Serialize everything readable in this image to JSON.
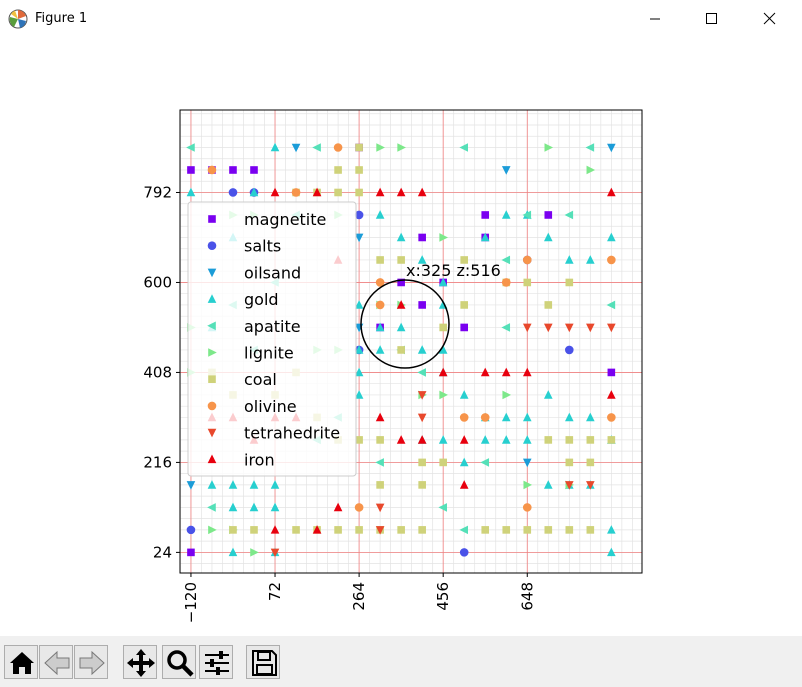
{
  "window": {
    "title": "Figure 1",
    "buttons": [
      "minimize",
      "maximize",
      "close"
    ]
  },
  "toolbar": {
    "buttons": [
      "home-icon",
      "back-icon",
      "forward-icon",
      "pan-icon",
      "zoom-icon",
      "configure-subplots-icon",
      "save-icon"
    ]
  },
  "chart_data": {
    "type": "scatter",
    "title": "",
    "xlabel": "",
    "ylabel": "",
    "xlim": [
      -145,
      910
    ],
    "ylim": [
      -20,
      968
    ],
    "xticks": [
      -120,
      72,
      264,
      456,
      648
    ],
    "yticks": [
      24,
      216,
      408,
      600,
      792
    ],
    "grid": true,
    "legend_position": "upper-left",
    "annotation": {
      "text": "x:325 z:516",
      "x": 325,
      "y": 516
    },
    "series": [
      {
        "name": "magnetite",
        "marker": "square",
        "color": "#7a00f0",
        "points": [
          [
            -120,
            840
          ],
          [
            -72,
            840
          ],
          [
            -24,
            840
          ],
          [
            24,
            840
          ],
          [
            264,
            888
          ],
          [
            408,
            696
          ],
          [
            408,
            552
          ],
          [
            456,
            600
          ],
          [
            360,
            600
          ],
          [
            312,
            504
          ],
          [
            552,
            744
          ],
          [
            696,
            744
          ],
          [
            504,
            504
          ],
          [
            552,
            696
          ],
          [
            840,
            408
          ],
          [
            -120,
            24
          ]
        ]
      },
      {
        "name": "salts",
        "marker": "circle",
        "color": "#4a52e8",
        "points": [
          [
            -24,
            792
          ],
          [
            24,
            792
          ],
          [
            264,
            744
          ],
          [
            264,
            456
          ],
          [
            648,
            648
          ],
          [
            744,
            456
          ],
          [
            504,
            24
          ],
          [
            -120,
            72
          ]
        ]
      },
      {
        "name": "oilsand",
        "marker": "triangle-down",
        "color": "#1b9cd8",
        "points": [
          [
            120,
            888
          ],
          [
            840,
            888
          ],
          [
            600,
            840
          ],
          [
            264,
            696
          ],
          [
            264,
            504
          ],
          [
            648,
            216
          ],
          [
            -120,
            168
          ]
        ]
      },
      {
        "name": "gold",
        "marker": "triangle-up",
        "color": "#27cfcf",
        "points": [
          [
            -120,
            792
          ],
          [
            72,
            888
          ],
          [
            24,
            792
          ],
          [
            -24,
            696
          ],
          [
            -72,
            504
          ],
          [
            360,
            696
          ],
          [
            408,
            648
          ],
          [
            456,
            600
          ],
          [
            456,
            552
          ],
          [
            312,
            504
          ],
          [
            264,
            552
          ],
          [
            360,
            504
          ],
          [
            408,
            456
          ],
          [
            456,
            456
          ],
          [
            552,
            696
          ],
          [
            600,
            744
          ],
          [
            648,
            744
          ],
          [
            696,
            696
          ],
          [
            744,
            648
          ],
          [
            792,
            648
          ],
          [
            840,
            696
          ],
          [
            312,
            744
          ],
          [
            456,
            408
          ],
          [
            504,
            360
          ],
          [
            552,
            312
          ],
          [
            600,
            312
          ],
          [
            648,
            312
          ],
          [
            696,
            360
          ],
          [
            744,
            312
          ],
          [
            792,
            312
          ],
          [
            840,
            264
          ],
          [
            -72,
            168
          ],
          [
            -24,
            168
          ],
          [
            24,
            168
          ],
          [
            72,
            168
          ],
          [
            -24,
            120
          ],
          [
            24,
            120
          ],
          [
            72,
            120
          ],
          [
            264,
            360
          ],
          [
            264,
            408
          ],
          [
            264,
            456
          ],
          [
            312,
            456
          ],
          [
            408,
            264
          ],
          [
            456,
            264
          ],
          [
            552,
            264
          ],
          [
            600,
            264
          ],
          [
            648,
            264
          ],
          [
            504,
            216
          ],
          [
            840,
            24
          ],
          [
            72,
            24
          ],
          [
            -24,
            24
          ],
          [
            696,
            168
          ],
          [
            744,
            168
          ],
          [
            792,
            168
          ],
          [
            840,
            72
          ]
        ]
      },
      {
        "name": "apatite",
        "marker": "triangle-left",
        "color": "#55e0b8",
        "points": [
          [
            -120,
            888
          ],
          [
            168,
            888
          ],
          [
            120,
            744
          ],
          [
            360,
            456
          ],
          [
            408,
            408
          ],
          [
            600,
            648
          ],
          [
            648,
            744
          ],
          [
            600,
            504
          ],
          [
            744,
            744
          ],
          [
            792,
            888
          ],
          [
            456,
            120
          ],
          [
            504,
            72
          ],
          [
            552,
            216
          ],
          [
            312,
            216
          ],
          [
            -72,
            120
          ],
          [
            168,
            264
          ],
          [
            216,
            312
          ],
          [
            24,
            456
          ],
          [
            -24,
            552
          ],
          [
            72,
            600
          ],
          [
            504,
            888
          ],
          [
            840,
            552
          ]
        ]
      },
      {
        "name": "lignite",
        "marker": "triangle-right",
        "color": "#7de88a",
        "points": [
          [
            24,
            744
          ],
          [
            -24,
            744
          ],
          [
            312,
            888
          ],
          [
            360,
            888
          ],
          [
            312,
            552
          ],
          [
            360,
            552
          ],
          [
            216,
            744
          ],
          [
            408,
            360
          ],
          [
            456,
            360
          ],
          [
            600,
            360
          ],
          [
            648,
            168
          ],
          [
            744,
            168
          ],
          [
            792,
            840
          ],
          [
            696,
            888
          ],
          [
            -72,
            72
          ],
          [
            -24,
            72
          ],
          [
            456,
            696
          ],
          [
            -120,
            504
          ],
          [
            168,
            456
          ],
          [
            216,
            456
          ],
          [
            24,
            24
          ],
          [
            -120,
            408
          ]
        ]
      },
      {
        "name": "coal",
        "marker": "square",
        "color": "#cfd27a",
        "points": [
          [
            216,
            840
          ],
          [
            264,
            840
          ],
          [
            216,
            792
          ],
          [
            168,
            792
          ],
          [
            120,
            792
          ],
          [
            264,
            792
          ],
          [
            360,
            648
          ],
          [
            312,
            648
          ],
          [
            360,
            456
          ],
          [
            456,
            504
          ],
          [
            504,
            552
          ],
          [
            504,
            648
          ],
          [
            600,
            600
          ],
          [
            648,
            600
          ],
          [
            696,
            552
          ],
          [
            744,
            600
          ],
          [
            696,
            264
          ],
          [
            744,
            264
          ],
          [
            792,
            264
          ],
          [
            840,
            264
          ],
          [
            312,
            264
          ],
          [
            264,
            264
          ],
          [
            408,
            216
          ],
          [
            456,
            216
          ],
          [
            408,
            168
          ],
          [
            312,
            168
          ],
          [
            744,
            216
          ],
          [
            792,
            216
          ],
          [
            -24,
            72
          ],
          [
            24,
            72
          ],
          [
            120,
            72
          ],
          [
            168,
            72
          ],
          [
            216,
            72
          ],
          [
            264,
            72
          ],
          [
            312,
            72
          ],
          [
            360,
            72
          ],
          [
            408,
            72
          ],
          [
            552,
            72
          ],
          [
            600,
            72
          ],
          [
            648,
            72
          ],
          [
            696,
            72
          ],
          [
            744,
            72
          ],
          [
            792,
            72
          ],
          [
            264,
            888
          ],
          [
            -72,
            408
          ],
          [
            -24,
            360
          ],
          [
            72,
            360
          ],
          [
            120,
            408
          ],
          [
            168,
            312
          ],
          [
            216,
            264
          ]
        ]
      },
      {
        "name": "olivine",
        "marker": "circle",
        "color": "#f7944a",
        "points": [
          [
            216,
            888
          ],
          [
            -72,
            840
          ],
          [
            120,
            792
          ],
          [
            312,
            600
          ],
          [
            312,
            552
          ],
          [
            600,
            600
          ],
          [
            648,
            648
          ],
          [
            840,
            648
          ],
          [
            504,
            312
          ],
          [
            552,
            312
          ],
          [
            264,
            120
          ],
          [
            840,
            312
          ],
          [
            648,
            120
          ]
        ]
      },
      {
        "name": "tetrahedrite",
        "marker": "triangle-down",
        "color": "#e8482c",
        "points": [
          [
            312,
            120
          ],
          [
            312,
            72
          ],
          [
            408,
            360
          ],
          [
            408,
            312
          ],
          [
            648,
            504
          ],
          [
            696,
            504
          ],
          [
            744,
            504
          ],
          [
            792,
            504
          ],
          [
            840,
            504
          ],
          [
            72,
            24
          ],
          [
            744,
            168
          ],
          [
            792,
            168
          ]
        ]
      },
      {
        "name": "iron",
        "marker": "triangle-up",
        "color": "#e8000e",
        "points": [
          [
            72,
            792
          ],
          [
            168,
            792
          ],
          [
            312,
            792
          ],
          [
            360,
            792
          ],
          [
            408,
            792
          ],
          [
            840,
            792
          ],
          [
            216,
            648
          ],
          [
            360,
            552
          ],
          [
            312,
            312
          ],
          [
            360,
            264
          ],
          [
            408,
            264
          ],
          [
            504,
            264
          ],
          [
            552,
            408
          ],
          [
            600,
            408
          ],
          [
            648,
            408
          ],
          [
            504,
            168
          ],
          [
            456,
            408
          ],
          [
            840,
            360
          ],
          [
            72,
            72
          ],
          [
            168,
            72
          ],
          [
            216,
            120
          ],
          [
            -72,
            312
          ],
          [
            -24,
            312
          ],
          [
            24,
            264
          ],
          [
            72,
            312
          ],
          [
            120,
            312
          ]
        ]
      }
    ]
  }
}
